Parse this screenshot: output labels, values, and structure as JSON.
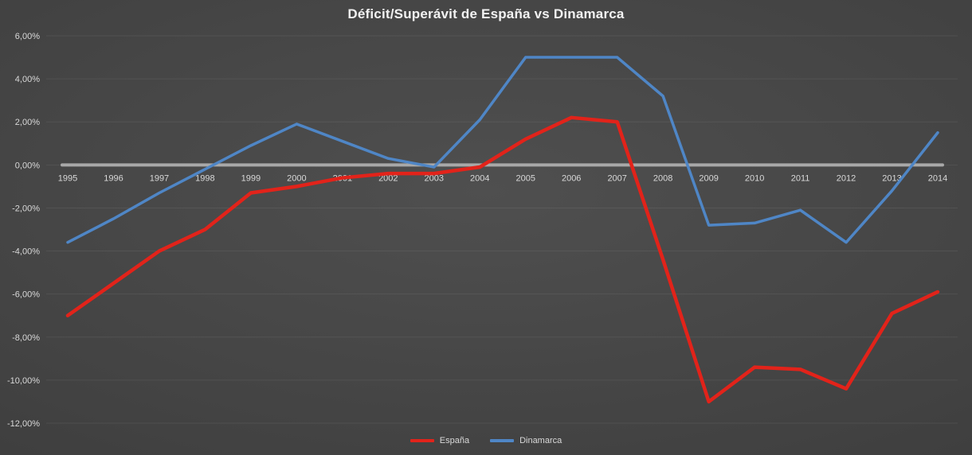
{
  "chart_data": {
    "type": "line",
    "title": "Déficit/Superávit de España vs Dinamarca",
    "categories": [
      "1995",
      "1996",
      "1997",
      "1998",
      "1999",
      "2000",
      "2001",
      "2002",
      "2003",
      "2004",
      "2005",
      "2006",
      "2007",
      "2008",
      "2009",
      "2010",
      "2011",
      "2012",
      "2013",
      "2014"
    ],
    "series": [
      {
        "name": "España",
        "color": "#e2231a",
        "values": [
          -7.0,
          -5.5,
          -4.0,
          -3.0,
          -1.3,
          -1.0,
          -0.6,
          -0.4,
          -0.4,
          -0.1,
          1.2,
          2.2,
          2.0,
          -4.4,
          -11.0,
          -9.4,
          -9.5,
          -10.4,
          -6.9,
          -5.9
        ]
      },
      {
        "name": "Dinamarca",
        "color": "#4f86c6",
        "values": [
          -3.6,
          -2.5,
          -1.3,
          -0.2,
          0.9,
          1.9,
          1.1,
          0.3,
          -0.1,
          2.1,
          5.0,
          5.0,
          5.0,
          3.2,
          -2.8,
          -2.7,
          -2.1,
          -3.6,
          -1.2,
          1.5
        ]
      }
    ],
    "ylim": [
      -12,
      6
    ],
    "ytick_step": 2,
    "ytick_labels": [
      "6,00%",
      "4,00%",
      "2,00%",
      "0,00%",
      "-2,00%",
      "-4,00%",
      "-6,00%",
      "-8,00%",
      "-10,00%",
      "-12,00%"
    ],
    "grid": true,
    "legend_position": "bottom",
    "zero_axis": true,
    "colors": {
      "axis_label": "#d9d9d9",
      "gridline": "rgba(255,255,255,0.07)",
      "zero_line": "#a8a8a8",
      "title": "#f2f2f2"
    }
  }
}
